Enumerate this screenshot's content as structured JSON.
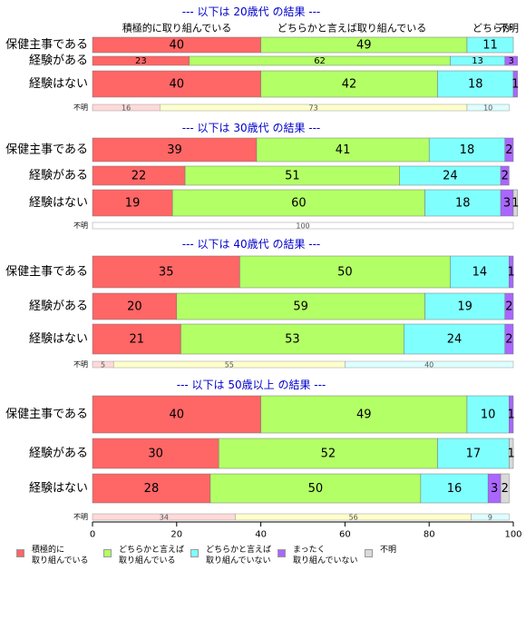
{
  "chart_data": {
    "type": "bar",
    "orientation": "horizontal",
    "stacked": true,
    "xlim": [
      0,
      100
    ],
    "xticks": [
      0,
      20,
      40,
      60,
      80,
      100
    ],
    "header_labels": [
      "積極的に取り組んでいる",
      "どちらかと言えば取り組んでいる",
      "どちらか",
      "不明"
    ],
    "series_names": [
      "積極的に\n取り組んでいる",
      "どちらかと言えば\n取り組んでいる",
      "どちらかと言えば\n取り組んでいない",
      "まったく\n取り組んでいない",
      "不明"
    ],
    "colors": [
      "#FF6666",
      "#B3FF66",
      "#80FFFF",
      "#AA66FF",
      "#D9D9D9"
    ],
    "unknown_colors": [
      "#FFD9D9",
      "#FFFFCC",
      "#DDFFFF"
    ],
    "panels": [
      {
        "title": "--- 以下は 20歳代 の結果 ---",
        "rows": [
          {
            "label": "保健主事である",
            "values": [
              40,
              49,
              11,
              0,
              0
            ],
            "labels": [
              "40",
              "49",
              "11",
              "",
              ""
            ]
          },
          {
            "label": "経験がある",
            "values": [
              23,
              62,
              13,
              3,
              0
            ],
            "labels": [
              "23",
              "62",
              "13",
              "3",
              ""
            ]
          },
          {
            "label": "経験はない",
            "values": [
              40,
              42,
              18,
              1,
              0
            ],
            "labels": [
              "40",
              "42",
              "18",
              "1",
              ""
            ]
          }
        ],
        "unknown": {
          "label": "不明",
          "values": [
            16,
            73,
            10
          ],
          "labels": [
            "16",
            "73",
            "10"
          ]
        }
      },
      {
        "title": "--- 以下は 30歳代 の結果 ---",
        "rows": [
          {
            "label": "保健主事である",
            "values": [
              39,
              41,
              18,
              2,
              0
            ],
            "labels": [
              "39",
              "41",
              "18",
              "2",
              ""
            ]
          },
          {
            "label": "経験がある",
            "values": [
              22,
              51,
              24,
              2,
              0
            ],
            "labels": [
              "22",
              "51",
              "24",
              "2",
              ""
            ]
          },
          {
            "label": "経験はない",
            "values": [
              19,
              60,
              18,
              3,
              1
            ],
            "labels": [
              "19",
              "60",
              "18",
              "3",
              "1"
            ]
          }
        ],
        "unknown": {
          "label": "不明",
          "values": [
            100
          ],
          "labels": [
            "100"
          ]
        }
      },
      {
        "title": "--- 以下は 40歳代 の結果 ---",
        "rows": [
          {
            "label": "保健主事である",
            "values": [
              35,
              50,
              14,
              1,
              0
            ],
            "labels": [
              "35",
              "50",
              "14",
              "1",
              ""
            ]
          },
          {
            "label": "経験がある",
            "values": [
              20,
              59,
              19,
              2,
              0
            ],
            "labels": [
              "20",
              "59",
              "19",
              "2",
              ""
            ]
          },
          {
            "label": "経験はない",
            "values": [
              21,
              53,
              24,
              2,
              0
            ],
            "labels": [
              "21",
              "53",
              "24",
              "2",
              ""
            ]
          }
        ],
        "unknown": {
          "label": "不明",
          "values": [
            5,
            55,
            40
          ],
          "labels": [
            "5",
            "55",
            "40"
          ]
        }
      },
      {
        "title": "--- 以下は 50歳以上 の結果 ---",
        "rows": [
          {
            "label": "保健主事である",
            "values": [
              40,
              49,
              10,
              1,
              0
            ],
            "labels": [
              "40",
              "49",
              "10",
              "1",
              ""
            ]
          },
          {
            "label": "経験がある",
            "values": [
              30,
              52,
              17,
              0,
              1
            ],
            "labels": [
              "30",
              "52",
              "17",
              "",
              "1"
            ]
          },
          {
            "label": "経験はない",
            "values": [
              28,
              50,
              16,
              3,
              2
            ],
            "labels": [
              "28",
              "50",
              "16",
              "3",
              "2"
            ]
          }
        ],
        "unknown": {
          "label": "不明",
          "values": [
            34,
            56,
            9
          ],
          "labels": [
            "34",
            "56",
            "9"
          ]
        }
      }
    ]
  }
}
